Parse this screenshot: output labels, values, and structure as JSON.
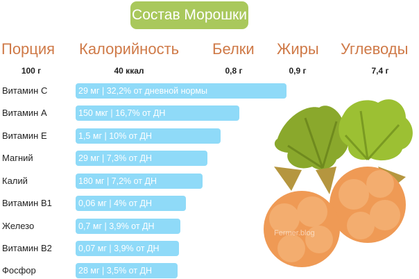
{
  "title": "Состав Морошки",
  "summary": [
    {
      "label": "Порция",
      "value": "100 г"
    },
    {
      "label": "Калорийность",
      "value": "40 ккал"
    },
    {
      "label": "Белки",
      "value": "0,8 г"
    },
    {
      "label": "Жиры",
      "value": "0,9 г"
    },
    {
      "label": "Углеводы",
      "value": "7,4 г"
    }
  ],
  "chart_data": {
    "type": "bar",
    "orientation": "horizontal",
    "categories": [
      "Витамин C",
      "Витамин A",
      "Витамин E",
      "Магний",
      "Калий",
      "Витамин B1",
      "Железо",
      "Витамин B2",
      "Фосфор"
    ],
    "values": [
      32.2,
      16.7,
      10,
      7.3,
      7.2,
      4,
      3.9,
      3.9,
      3.5
    ],
    "unit": "% от дневной нормы",
    "data_labels": [
      "29 мг | 32,2% от дневной нормы",
      "150 мкг | 16,7% от ДН",
      "1,5 мг | 10% от ДН",
      "29 мг | 7,3% от ДН",
      "180 мг | 7,2% от ДН",
      "0,06 мг | 4% от ДН",
      "0,7 мг | 3,9% от ДН",
      "0,07 мг | 3,9% от ДН",
      "28 мг | 3,5% от ДН"
    ],
    "bar_color": "#8fdaf8"
  },
  "colors": {
    "title_bg": "#a9c85c",
    "header": "#cf7a48",
    "berry": "#f0a05a",
    "leaf": "#8fb030"
  },
  "watermark": "Fermer.blog"
}
